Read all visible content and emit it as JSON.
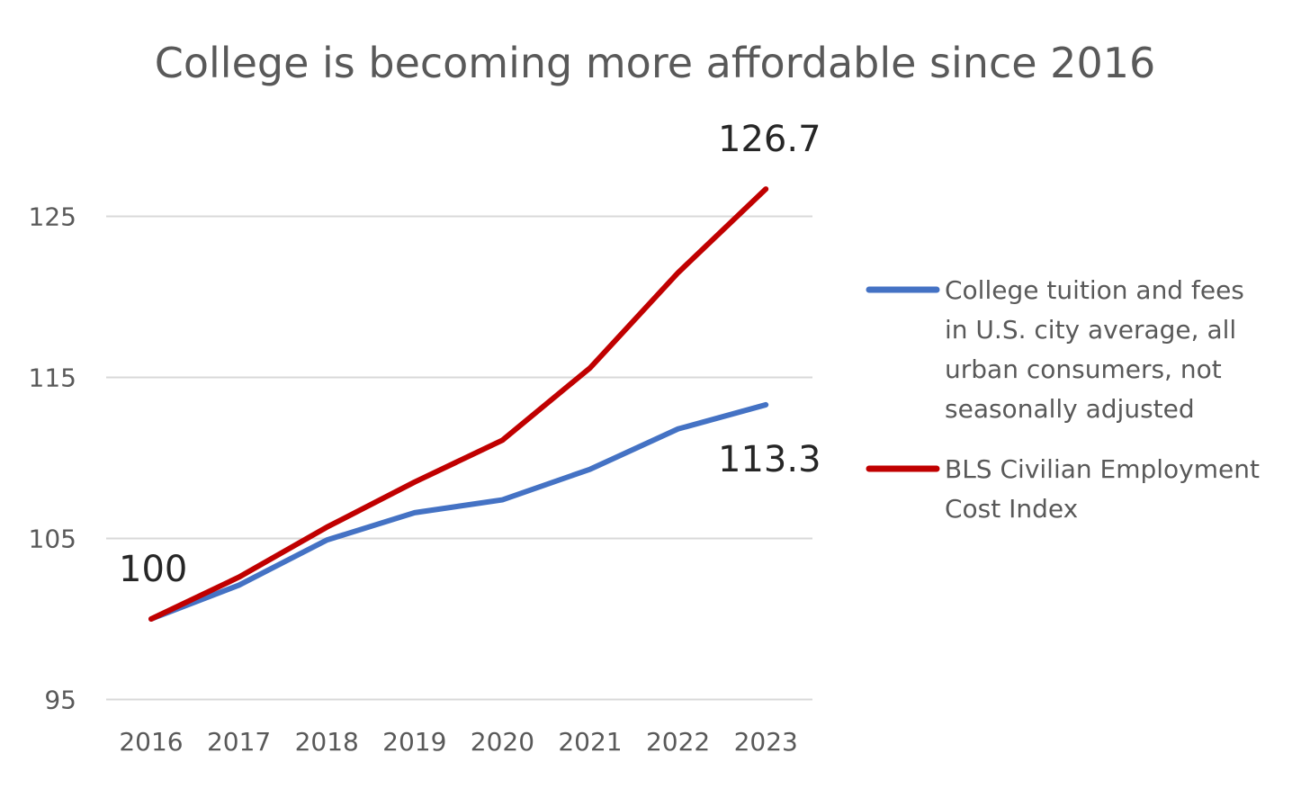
{
  "chart_data": {
    "type": "line",
    "title": "College is becoming more affordable since 2016",
    "xlabel": "",
    "ylabel": "",
    "x": [
      "2016",
      "2017",
      "2018",
      "2019",
      "2020",
      "2021",
      "2022",
      "2023"
    ],
    "yticks": [
      "95",
      "105",
      "115",
      "125"
    ],
    "ylim": [
      95,
      128
    ],
    "grid": true,
    "legend_position": "right",
    "series": [
      {
        "name": "College tuition and fees in U.S. city average, all urban consumers, not seasonally adjusted",
        "legend_lines": [
          "College tuition and fees",
          "in U.S. city average, all",
          "urban consumers, not",
          "seasonally adjusted"
        ],
        "color": "#4472C4",
        "values": [
          100,
          102.1,
          104.9,
          106.6,
          107.4,
          109.3,
          111.8,
          113.3
        ]
      },
      {
        "name": "BLS Civilian Employment Cost Index",
        "legend_lines": [
          "BLS Civilian Employment",
          "Cost Index"
        ],
        "color": "#C00000",
        "values": [
          100,
          102.6,
          105.7,
          108.5,
          111.1,
          115.6,
          121.5,
          126.7
        ]
      }
    ],
    "annotations": [
      "100",
      "126.7",
      "113.3"
    ]
  }
}
